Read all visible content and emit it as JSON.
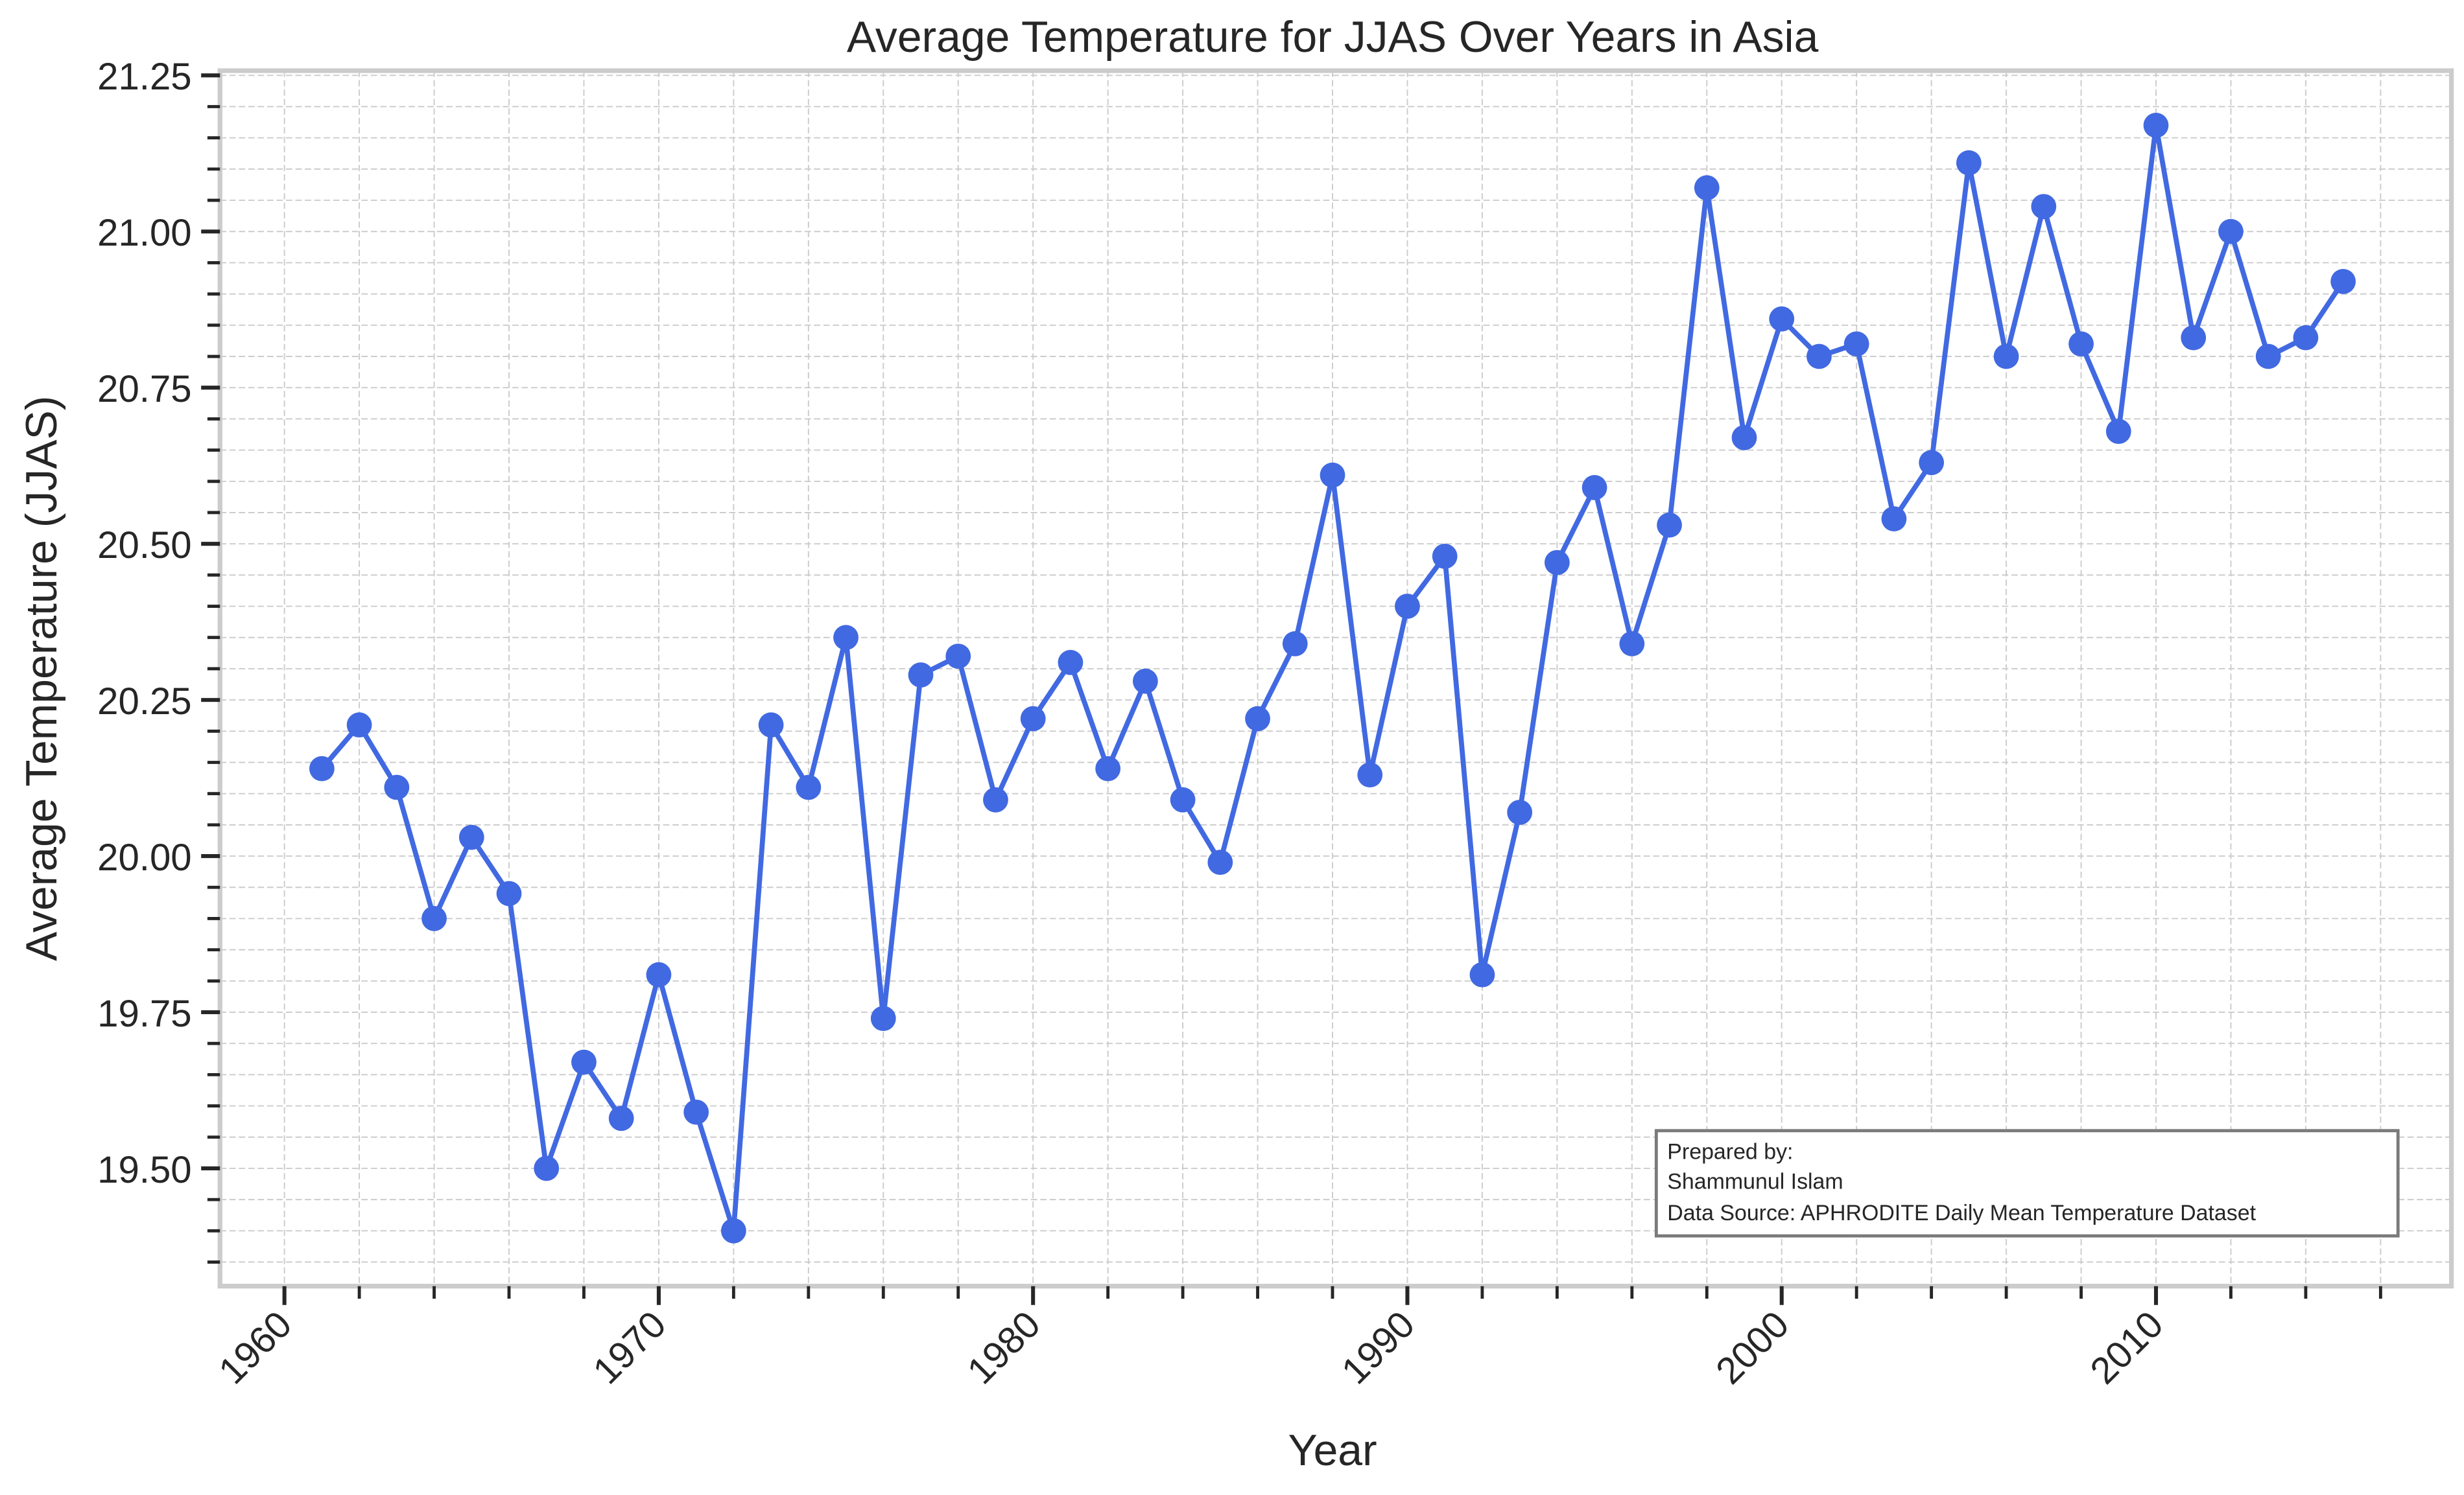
{
  "chart_data": {
    "type": "line",
    "title": "Average Temperature for JJAS Over Years in Asia",
    "xlabel": "Year",
    "ylabel": "Average Temperature (JJAS)",
    "xlim": [
      1959.2,
      2016.2
    ],
    "ylim": [
      19.32,
      21.25
    ],
    "x_major_ticks": [
      1960,
      1970,
      1980,
      1990,
      2000,
      2010
    ],
    "x_tick_labels": [
      "1960",
      "1970",
      "1980",
      "1990",
      "2000",
      "2010"
    ],
    "x_minor_step": 2,
    "y_major_ticks": [
      19.5,
      19.75,
      20.0,
      20.25,
      20.5,
      20.75,
      21.0,
      21.25
    ],
    "y_tick_labels": [
      "19.50",
      "19.75",
      "20.00",
      "20.25",
      "20.50",
      "20.75",
      "21.00",
      "21.25"
    ],
    "y_minor_step": 0.05,
    "grid": true,
    "series": [
      {
        "name": "Average Temperature (JJAS)",
        "color": "#4169e1",
        "marker": "circle",
        "x": [
          1961,
          1962,
          1963,
          1964,
          1965,
          1966,
          1967,
          1968,
          1969,
          1970,
          1971,
          1972,
          1973,
          1974,
          1975,
          1976,
          1977,
          1978,
          1979,
          1980,
          1981,
          1982,
          1983,
          1984,
          1985,
          1986,
          1987,
          1988,
          1989,
          1990,
          1991,
          1992,
          1993,
          1994,
          1995,
          1996,
          1997,
          1998,
          1999,
          2000,
          2001,
          2002,
          2003,
          2004,
          2005,
          2006,
          2007,
          2008,
          2009,
          2010,
          2011,
          2012,
          2013,
          2014,
          2015
        ],
        "values": [
          20.14,
          20.21,
          20.11,
          19.9,
          20.03,
          19.94,
          19.5,
          19.67,
          19.58,
          19.81,
          19.59,
          19.4,
          20.21,
          20.11,
          20.35,
          19.74,
          20.29,
          20.32,
          20.09,
          20.22,
          20.31,
          20.14,
          20.28,
          20.09,
          19.99,
          20.22,
          20.34,
          20.61,
          20.13,
          20.4,
          20.48,
          19.81,
          20.07,
          20.47,
          20.59,
          20.34,
          20.53,
          21.07,
          20.67,
          20.86,
          20.8,
          20.82,
          20.54,
          20.63,
          21.11,
          20.8,
          21.04,
          20.82,
          20.68,
          21.17,
          20.83,
          21.0,
          20.8,
          20.83,
          20.92
        ]
      }
    ],
    "annotation": {
      "lines": [
        "Prepared by:",
        "Shammunul Islam",
        "Data Source: APHRODITE Daily Mean Temperature Dataset"
      ],
      "placement": "bottom-right"
    }
  }
}
